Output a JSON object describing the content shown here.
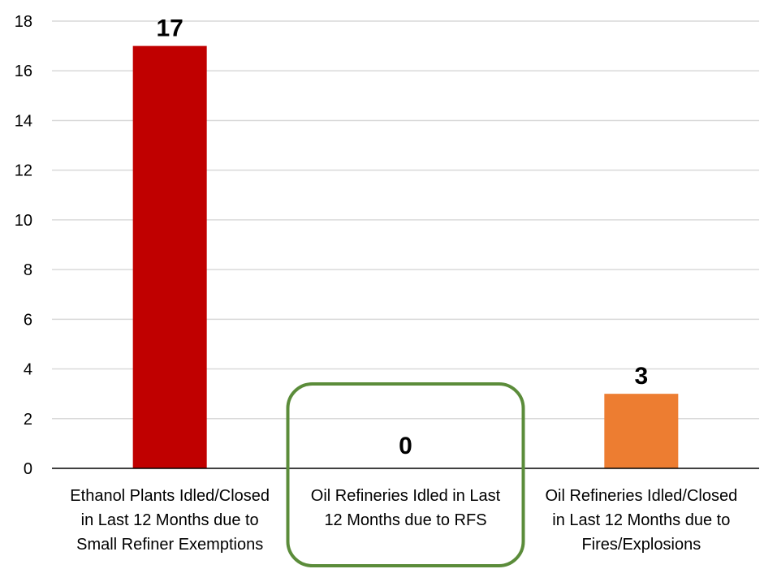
{
  "chart_data": {
    "type": "bar",
    "title": "",
    "xlabel": "",
    "ylabel": "",
    "ylim": [
      0,
      18
    ],
    "yticks": [
      0,
      2,
      4,
      6,
      8,
      10,
      12,
      14,
      16,
      18
    ],
    "grid": true,
    "legend": "none",
    "categories": [
      "Ethanol Plants Idled/Closed in Last 12 Months due to Small Refiner Exemptions",
      "Oil Refineries Idled in Last 12 Months due to RFS",
      "Oil Refineries Idled/Closed in Last 12 Months due to Fires/Explosions"
    ],
    "category_lines": [
      [
        "Ethanol Plants Idled/Closed",
        "in Last 12 Months due to",
        "Small Refiner Exemptions"
      ],
      [
        "Oil Refineries Idled in Last",
        "12 Months due to RFS"
      ],
      [
        "Oil Refineries Idled/Closed",
        "in Last 12 Months due to",
        "Fires/Explosions"
      ]
    ],
    "values": [
      17,
      0,
      3
    ],
    "data_labels": [
      "17",
      "0",
      "3"
    ],
    "colors": [
      "#c00000",
      "#c00000",
      "#ed7d31"
    ],
    "highlight": {
      "category_index": 1,
      "color": "#5b8c3a",
      "shape": "rounded-rectangle"
    }
  }
}
